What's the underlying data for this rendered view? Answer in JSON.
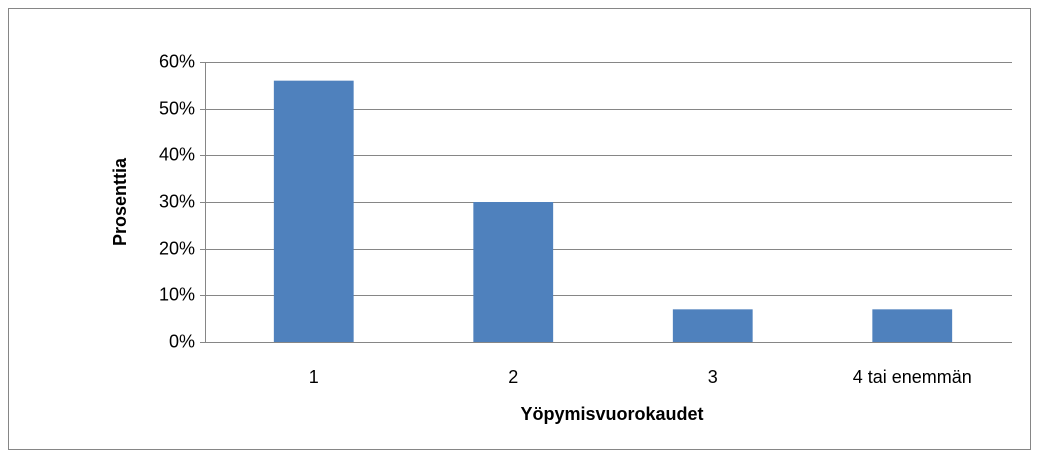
{
  "chart_data": {
    "type": "bar",
    "x_label": "Yöpymisvuorokaudet",
    "y_label": "Prosenttia",
    "categories": [
      "1",
      "2",
      "3",
      "4 tai enemmän"
    ],
    "values": [
      56,
      30,
      7,
      7
    ],
    "color": "#4f81bd",
    "ylim": [
      0,
      60
    ],
    "yticks": [
      {
        "value": 0,
        "label": "0%"
      },
      {
        "value": 10,
        "label": "10%"
      },
      {
        "value": 20,
        "label": "20%"
      },
      {
        "value": 30,
        "label": "30%"
      },
      {
        "value": 40,
        "label": "40%"
      },
      {
        "value": 50,
        "label": "50%"
      },
      {
        "value": 60,
        "label": "60%"
      }
    ],
    "grid": true
  }
}
